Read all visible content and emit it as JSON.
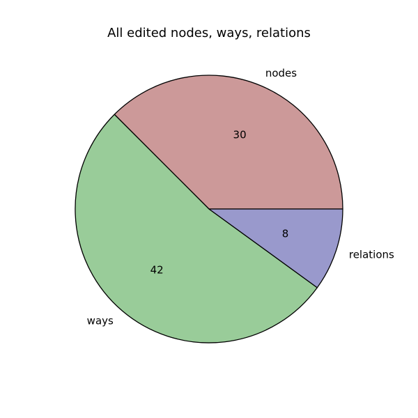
{
  "chart_data": {
    "type": "pie",
    "title": "All edited nodes, ways, relations",
    "slices": [
      {
        "label": "nodes",
        "value": 30,
        "display": "30",
        "color": "#cc9999"
      },
      {
        "label": "ways",
        "value": 42,
        "display": "42",
        "color": "#99cc99"
      },
      {
        "label": "relations",
        "value": 8,
        "display": "8",
        "color": "#9999cc"
      }
    ],
    "start_angle_deg": 0,
    "direction": "counterclockwise",
    "edge_color": "#000000"
  }
}
